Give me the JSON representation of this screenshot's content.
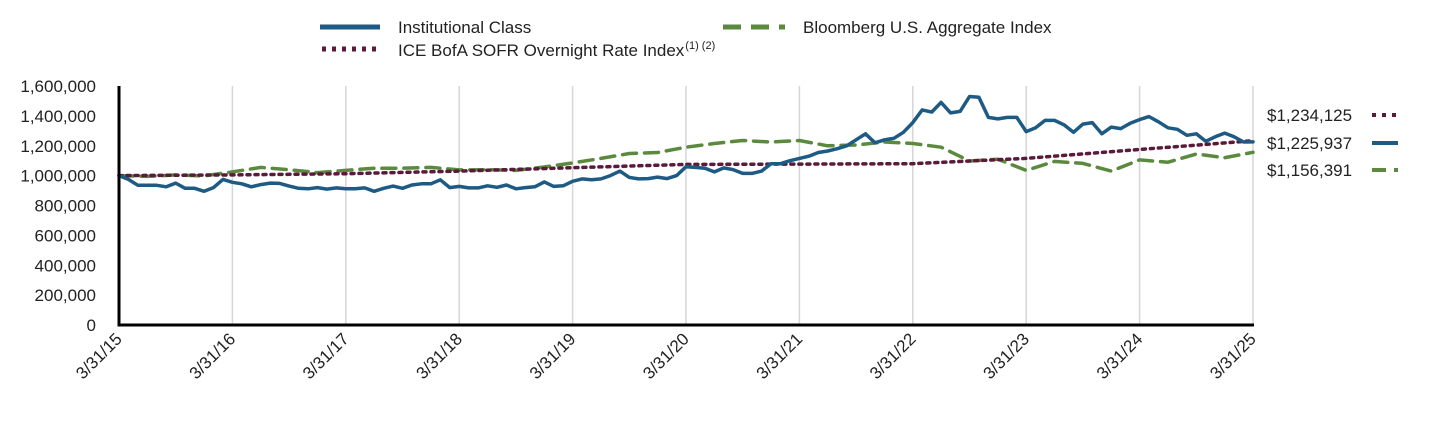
{
  "chart_data": {
    "type": "line",
    "x_tick_labels": [
      "3/31/15",
      "3/31/16",
      "3/31/17",
      "3/31/18",
      "3/31/19",
      "3/31/20",
      "3/31/21",
      "3/31/22",
      "3/31/23",
      "3/31/24",
      "3/31/25"
    ],
    "y_tick_labels": [
      "0",
      "200,000",
      "400,000",
      "600,000",
      "800,000",
      "1,000,000",
      "1,200,000",
      "1,400,000",
      "1,600,000"
    ],
    "ylim": [
      0,
      1600000
    ],
    "xlim": [
      "3/31/15",
      "3/31/25"
    ],
    "grid": "vertical",
    "legend_position": "top",
    "series": [
      {
        "name": "Institutional Class",
        "color": "#1d5a84",
        "style": "solid",
        "end_label": "$1,225,937",
        "x_years": [
          0,
          0.083,
          0.167,
          0.25,
          0.333,
          0.417,
          0.5,
          0.583,
          0.667,
          0.75,
          0.833,
          0.917,
          1,
          1.083,
          1.167,
          1.25,
          1.333,
          1.417,
          1.5,
          1.583,
          1.667,
          1.75,
          1.833,
          1.917,
          2,
          2.083,
          2.167,
          2.25,
          2.333,
          2.417,
          2.5,
          2.583,
          2.667,
          2.75,
          2.833,
          2.917,
          3,
          3.083,
          3.167,
          3.25,
          3.333,
          3.417,
          3.5,
          3.583,
          3.667,
          3.75,
          3.833,
          3.917,
          4,
          4.083,
          4.167,
          4.25,
          4.333,
          4.417,
          4.5,
          4.583,
          4.667,
          4.75,
          4.833,
          4.917,
          5,
          5.083,
          5.167,
          5.25,
          5.333,
          5.417,
          5.5,
          5.583,
          5.667,
          5.75,
          5.833,
          5.917,
          6,
          6.083,
          6.167,
          6.25,
          6.333,
          6.417,
          6.5,
          6.583,
          6.667,
          6.75,
          6.833,
          6.917,
          7,
          7.083,
          7.167,
          7.25,
          7.333,
          7.417,
          7.5,
          7.583,
          7.667,
          7.75,
          7.833,
          7.917,
          8,
          8.083,
          8.167,
          8.25,
          8.333,
          8.417,
          8.5,
          8.583,
          8.667,
          8.75,
          8.833,
          8.917,
          9,
          9.083,
          9.167,
          9.25,
          9.333,
          9.417,
          9.5,
          9.583,
          9.667,
          9.75,
          9.833,
          9.917,
          10
        ],
        "values": [
          1000000,
          975000,
          935000,
          935000,
          935000,
          925000,
          950000,
          915000,
          915000,
          895000,
          920000,
          975000,
          955000,
          945000,
          925000,
          940000,
          950000,
          948000,
          930000,
          915000,
          912000,
          920000,
          910000,
          918000,
          912000,
          912000,
          918000,
          895000,
          915000,
          930000,
          915000,
          937000,
          945000,
          945000,
          972000,
          920000,
          928000,
          918000,
          918000,
          932000,
          922000,
          937000,
          912000,
          920000,
          925000,
          958000,
          928000,
          932000,
          962000,
          978000,
          973000,
          978000,
          1000000,
          1030000,
          988000,
          978000,
          980000,
          990000,
          980000,
          1000000,
          1060000,
          1055000,
          1050000,
          1025000,
          1052000,
          1040000,
          1015000,
          1015000,
          1030000,
          1080000,
          1080000,
          1100000,
          1115000,
          1130000,
          1155000,
          1165000,
          1180000,
          1200000,
          1240000,
          1280000,
          1220000,
          1240000,
          1250000,
          1290000,
          1355000,
          1440000,
          1425000,
          1490000,
          1420000,
          1430000,
          1530000,
          1525000,
          1390000,
          1380000,
          1390000,
          1390000,
          1295000,
          1320000,
          1370000,
          1370000,
          1340000,
          1290000,
          1345000,
          1355000,
          1280000,
          1325000,
          1315000,
          1350000,
          1375000,
          1395000,
          1360000,
          1320000,
          1310000,
          1270000,
          1280000,
          1230000,
          1260000,
          1285000,
          1260000,
          1225000,
          1225937
        ]
      },
      {
        "name": "Bloomberg U.S. Aggregate Index",
        "color": "#5b8a3e",
        "style": "dashed",
        "end_label": "$1,156,391",
        "x_years": [
          0,
          0.25,
          0.5,
          0.75,
          1,
          1.25,
          1.5,
          1.75,
          2,
          2.25,
          2.5,
          2.75,
          3,
          3.25,
          3.5,
          3.75,
          4,
          4.25,
          4.5,
          4.75,
          5,
          5.25,
          5.5,
          5.75,
          6,
          6.25,
          6.5,
          6.75,
          7,
          7.25,
          7.5,
          7.75,
          8,
          8.25,
          8.5,
          8.75,
          9,
          9.25,
          9.5,
          9.75,
          10
        ],
        "values": [
          1000000,
          995000,
          1005000,
          998000,
          1025000,
          1055000,
          1040000,
          1020000,
          1035000,
          1050000,
          1050000,
          1055000,
          1038000,
          1040000,
          1035000,
          1058000,
          1085000,
          1115000,
          1148000,
          1155000,
          1190000,
          1215000,
          1235000,
          1225000,
          1235000,
          1200000,
          1205000,
          1225000,
          1215000,
          1190000,
          1098000,
          1110000,
          1035000,
          1095000,
          1082000,
          1030000,
          1105000,
          1090000,
          1145000,
          1120000,
          1156391
        ]
      },
      {
        "name": "ICE BofA SOFR Overnight Rate Index",
        "name_superscript": "(1) (2)",
        "color": "#5a1a3a",
        "style": "dotted",
        "end_label": "$1,234,125",
        "x_years": [
          0,
          1,
          2,
          3,
          4,
          5,
          6,
          7,
          8,
          9,
          10
        ],
        "values": [
          1000000,
          1005000,
          1013000,
          1030000,
          1053000,
          1075000,
          1077000,
          1080000,
          1115000,
          1175000,
          1234125
        ]
      }
    ]
  }
}
